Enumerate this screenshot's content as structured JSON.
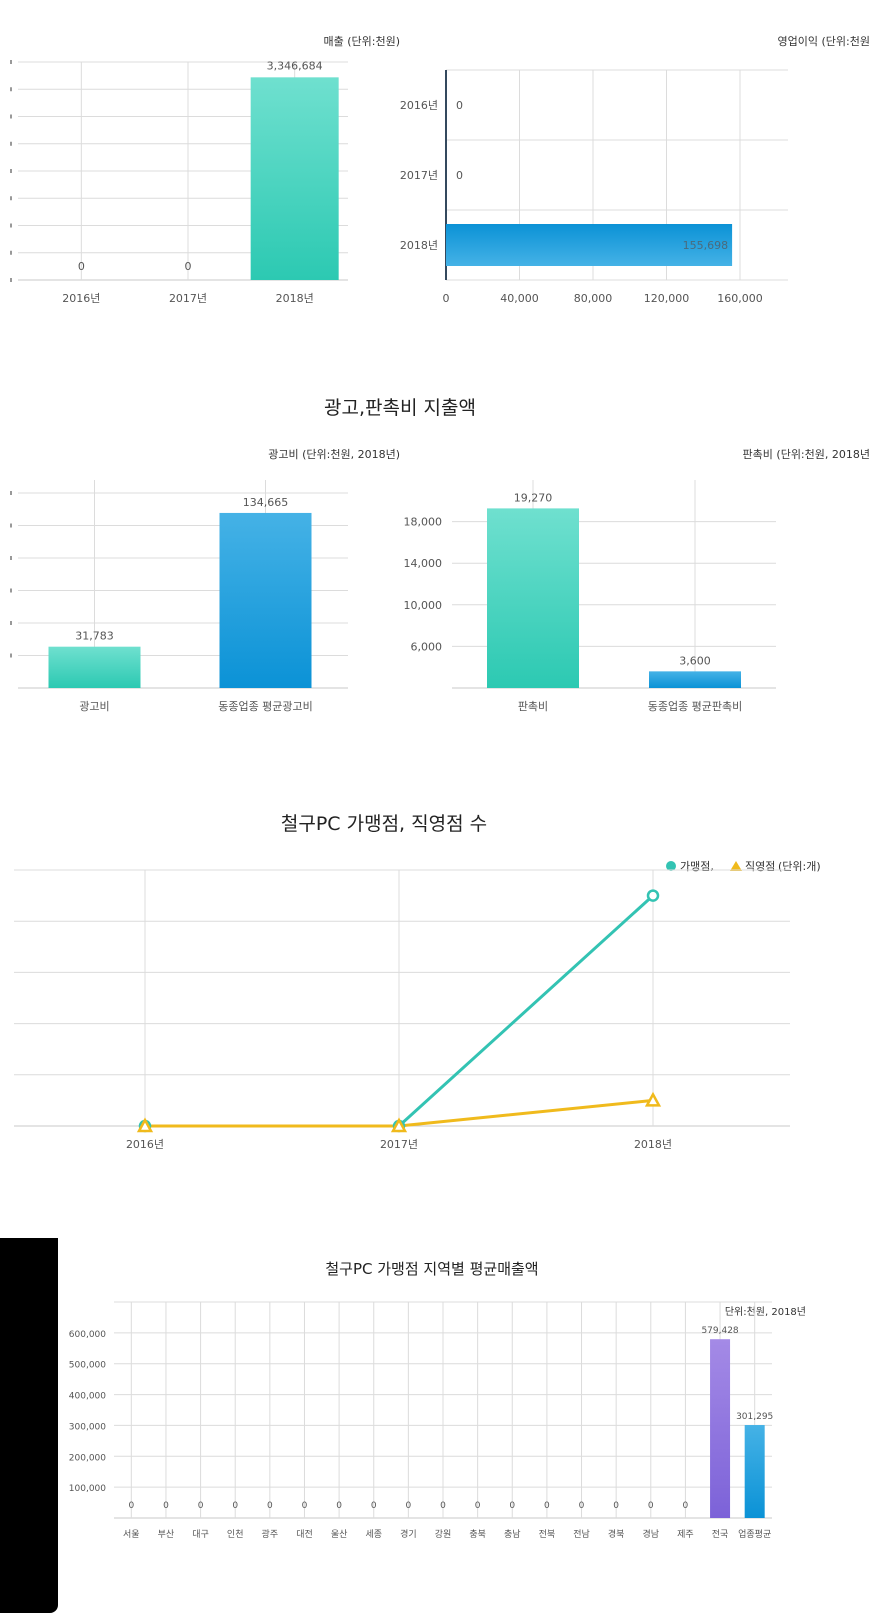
{
  "colors": {
    "teal_top": "#6fe0cf",
    "teal_bottom": "#2cc9b2",
    "blue_top": "#45b2e6",
    "blue_bottom": "#0b92d6",
    "purple_top": "#a48ae6",
    "purple_bottom": "#7c62d8",
    "teal_line": "#33c3b3",
    "gold_line": "#f0ba1c",
    "grid": "#dcdcdc",
    "axis": "#c8c8c8"
  },
  "section_titles": {
    "ad_spend": "광고,판촉비 지출액",
    "store_count": "철구PC 가맹점, 직영점 수"
  },
  "chart_data": [
    {
      "id": "sales",
      "type": "bar",
      "title": "매출 (단위:천원)",
      "categories": [
        "2016년",
        "2017년",
        "2018년"
      ],
      "values": [
        0,
        0,
        3346684
      ],
      "value_labels": [
        "0",
        "0",
        "3,346,684"
      ],
      "ylim": [
        0,
        3600000
      ],
      "y_ticks": [
        0,
        450000,
        900000,
        1350000,
        1800000,
        2250000,
        2700000,
        3150000,
        3600000
      ],
      "y_tick_labels": [
        "",
        "",
        "",
        "",
        "",
        "",
        "",
        "",
        ""
      ],
      "color": "teal",
      "grid": true
    },
    {
      "id": "operating_profit",
      "type": "bar",
      "orientation": "horizontal",
      "title": "영업이익 (단위:천원",
      "categories": [
        "2016년",
        "2017년",
        "2018년"
      ],
      "values": [
        0,
        0,
        155698
      ],
      "value_labels": [
        "0",
        "0",
        "155,698"
      ],
      "xlim": [
        0,
        160000
      ],
      "x_ticks": [
        0,
        40000,
        80000,
        120000,
        160000
      ],
      "x_tick_labels": [
        "0",
        "40,000",
        "80,000",
        "120,000",
        "160,000"
      ],
      "color": "blue",
      "grid": true
    },
    {
      "id": "ad_cost",
      "type": "bar",
      "title": "광고비 (단위:천원, 2018년)",
      "categories": [
        "광고비",
        "동종업종 평균광고비"
      ],
      "values": [
        31783,
        134665
      ],
      "value_labels": [
        "31,783",
        "134,665"
      ],
      "ylim": [
        0,
        160000
      ],
      "y_ticks": [
        0,
        25000,
        50000,
        75000,
        100000,
        125000,
        150000
      ],
      "colors": [
        "teal",
        "blue"
      ],
      "grid": true
    },
    {
      "id": "promo_cost",
      "type": "bar",
      "title": "판촉비 (단위:천원, 2018년",
      "categories": [
        "판촉비",
        "동종업종 평균판촉비"
      ],
      "values": [
        19270,
        3600
      ],
      "value_labels": [
        "19,270",
        "3,600"
      ],
      "ylim": [
        2000,
        22000
      ],
      "y_ticks": [
        2000,
        6000,
        10000,
        14000,
        18000
      ],
      "y_tick_labels": [
        "",
        "6,000",
        "10,000",
        "14,000",
        "18,000"
      ],
      "colors": [
        "teal",
        "blue"
      ],
      "grid": true
    },
    {
      "id": "store_counts",
      "type": "line",
      "categories": [
        "2016년",
        "2017년",
        "2018년"
      ],
      "legend": {
        "items": [
          "가맹점,",
          "직영점"
        ],
        "unit": "(단위:개)",
        "placement": "top-right"
      },
      "series": [
        {
          "name": "가맹점,",
          "values": [
            0,
            0,
            45
          ],
          "marker": "circle",
          "color": "teal"
        },
        {
          "name": "직영점",
          "values": [
            0,
            0,
            5
          ],
          "marker": "triangle",
          "color": "gold"
        }
      ],
      "ylim": [
        0,
        50
      ],
      "grid": true
    },
    {
      "id": "regional_avg_sales",
      "type": "bar",
      "title": "철구PC 가맹점 지역별 평균매출액",
      "unit_note": "단위:천원, 2018년",
      "categories": [
        "서울",
        "부산",
        "대구",
        "인천",
        "광주",
        "대전",
        "울산",
        "세종",
        "경기",
        "강원",
        "충북",
        "충남",
        "전북",
        "전남",
        "경북",
        "경남",
        "제주",
        "전국",
        "업종평균"
      ],
      "values": [
        0,
        0,
        0,
        0,
        0,
        0,
        0,
        0,
        0,
        0,
        0,
        0,
        0,
        0,
        0,
        0,
        0,
        579428,
        301295
      ],
      "value_labels": [
        "0",
        "0",
        "0",
        "0",
        "0",
        "0",
        "0",
        "0",
        "0",
        "0",
        "0",
        "0",
        "0",
        "0",
        "0",
        "0",
        "0",
        "579,428",
        "301,295"
      ],
      "bar_colors": [
        "",
        "",
        "",
        "",
        "",
        "",
        "",
        "",
        "",
        "",
        "",
        "",
        "",
        "",
        "",
        "",
        "",
        "purple",
        "blue"
      ],
      "ylim": [
        0,
        700000
      ],
      "y_ticks": [
        0,
        100000,
        200000,
        300000,
        400000,
        500000,
        600000,
        700000
      ],
      "y_tick_labels": [
        "",
        "100,000",
        "200,000",
        "300,000",
        "400,000",
        "500,000",
        "600,000",
        ""
      ],
      "grid": true
    }
  ]
}
